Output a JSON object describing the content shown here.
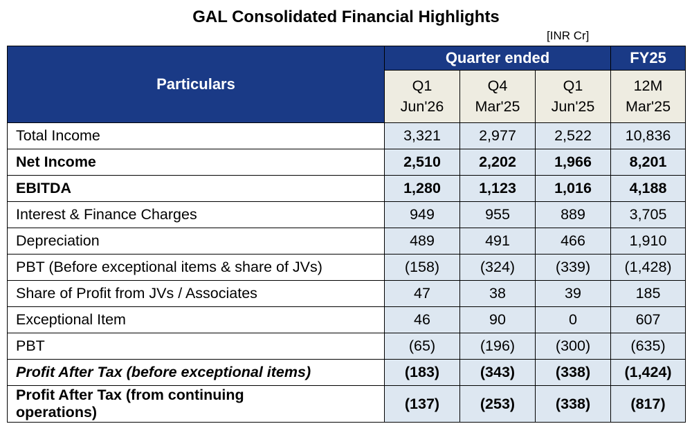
{
  "title": "GAL Consolidated Financial Highlights",
  "unit": "[INR Cr]",
  "header": {
    "particulars": "Particulars",
    "quarter_ended": "Quarter ended",
    "fy": "FY25",
    "columns": [
      {
        "top": "Q1",
        "bottom": "Jun'26"
      },
      {
        "top": "Q4",
        "bottom": "Mar'25"
      },
      {
        "top": "Q1",
        "bottom": "Jun'25"
      },
      {
        "top": "12M",
        "bottom": "Mar'25"
      }
    ]
  },
  "rows": [
    {
      "label": "Total Income",
      "values": [
        "3,321",
        "2,977",
        "2,522",
        "10,836"
      ]
    },
    {
      "label": "Net Income",
      "values": [
        "2,510",
        "2,202",
        "1,966",
        "8,201"
      ]
    },
    {
      "label": "EBITDA",
      "values": [
        "1,280",
        "1,123",
        "1,016",
        "4,188"
      ]
    },
    {
      "label": "Interest & Finance Charges",
      "values": [
        "949",
        "955",
        "889",
        "3,705"
      ]
    },
    {
      "label": "Depreciation",
      "values": [
        "489",
        "491",
        "466",
        "1,910"
      ]
    },
    {
      "label": "PBT (Before exceptional items & share of JVs)",
      "values": [
        "(158)",
        "(324)",
        "(339)",
        "(1,428)"
      ]
    },
    {
      "label": "Share of Profit from JVs / Associates",
      "values": [
        "47",
        "38",
        "39",
        "185"
      ]
    },
    {
      "label": "Exceptional Item",
      "values": [
        "46",
        "90",
        "0",
        "607"
      ]
    },
    {
      "label": "PBT",
      "values": [
        "(65)",
        "(196)",
        "(300)",
        "(635)"
      ]
    },
    {
      "label": "Profit After Tax (before exceptional items)",
      "values": [
        "(183)",
        "(343)",
        "(338)",
        "(1,424)"
      ]
    },
    {
      "label": "Profit After Tax (from continuing operations)",
      "values": [
        "(137)",
        "(253)",
        "(338)",
        "(817)"
      ]
    }
  ],
  "colors": {
    "header_bg": "#1a3a86",
    "subheader_bg": "#eeece1",
    "value_bg": "#dde7f1"
  }
}
